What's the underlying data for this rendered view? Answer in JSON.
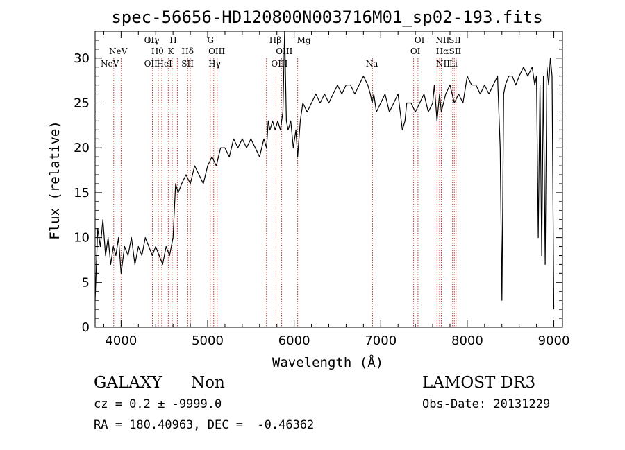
{
  "chart_data": {
    "type": "line",
    "title": "spec-56656-HD120800N003716M01_sp02-193.fits",
    "xlabel": "Wavelength (Å)",
    "ylabel": "Flux (relative)",
    "xlim": [
      3700,
      9100
    ],
    "ylim": [
      0,
      33
    ],
    "xticks": [
      4000,
      5000,
      6000,
      7000,
      8000,
      9000
    ],
    "xtick_labels": [
      "4000",
      "5000",
      "6000",
      "7000",
      "8000",
      "9000"
    ],
    "yticks": [
      0,
      5,
      10,
      15,
      20,
      25,
      30
    ],
    "ytick_labels": [
      "0",
      "5",
      "10",
      "15",
      "20",
      "25",
      "30"
    ],
    "series": [
      {
        "name": "spectrum",
        "x": [
          3700,
          3730,
          3760,
          3790,
          3820,
          3850,
          3880,
          3910,
          3940,
          3970,
          4000,
          4040,
          4080,
          4120,
          4160,
          4200,
          4240,
          4280,
          4320,
          4360,
          4400,
          4440,
          4480,
          4520,
          4560,
          4600,
          4630,
          4660,
          4700,
          4750,
          4800,
          4850,
          4900,
          4950,
          5000,
          5050,
          5100,
          5150,
          5200,
          5250,
          5300,
          5350,
          5400,
          5450,
          5500,
          5550,
          5600,
          5650,
          5680,
          5700,
          5720,
          5750,
          5780,
          5810,
          5840,
          5870,
          5890,
          5910,
          5930,
          5960,
          5990,
          6020,
          6040,
          6070,
          6100,
          6150,
          6200,
          6250,
          6300,
          6350,
          6400,
          6450,
          6500,
          6550,
          6600,
          6650,
          6700,
          6750,
          6800,
          6850,
          6880,
          6900,
          6920,
          6950,
          7000,
          7050,
          7100,
          7150,
          7200,
          7250,
          7280,
          7300,
          7350,
          7400,
          7450,
          7500,
          7550,
          7600,
          7620,
          7650,
          7680,
          7700,
          7750,
          7800,
          7850,
          7900,
          7950,
          8000,
          8050,
          8100,
          8150,
          8200,
          8250,
          8300,
          8350,
          8380,
          8400,
          8420,
          8440,
          8480,
          8520,
          8560,
          8600,
          8650,
          8700,
          8750,
          8780,
          8800,
          8820,
          8840,
          8860,
          8880,
          8900,
          8920,
          8940,
          8960,
          8980,
          9000
        ],
        "y": [
          3,
          11,
          9,
          12,
          8,
          10,
          7,
          9,
          8,
          10,
          6,
          9,
          8,
          10,
          7,
          9,
          8,
          10,
          9,
          8,
          9,
          8,
          7,
          9,
          8,
          10,
          16,
          15,
          16,
          17,
          16,
          18,
          17,
          16,
          18,
          19,
          18,
          20,
          20,
          19,
          21,
          20,
          21,
          20,
          21,
          20,
          19,
          21,
          20,
          23,
          22,
          23,
          22,
          23,
          22,
          24,
          33,
          23,
          22,
          23,
          20,
          22,
          19,
          23,
          25,
          24,
          25,
          26,
          25,
          26,
          25,
          26,
          27,
          26,
          27,
          27,
          26,
          27,
          28,
          27,
          26,
          25,
          26,
          24,
          25,
          26,
          24,
          25,
          26,
          22,
          23,
          25,
          25,
          24,
          25,
          26,
          24,
          25,
          27,
          23,
          26,
          24,
          26,
          27,
          25,
          26,
          25,
          28,
          27,
          27,
          26,
          27,
          26,
          27,
          28,
          20,
          3,
          26,
          27,
          28,
          28,
          27,
          28,
          29,
          28,
          29,
          27,
          28,
          10,
          27,
          8,
          28,
          7,
          29,
          27,
          30,
          28,
          2
        ]
      }
    ],
    "line_markers": [
      {
        "label": "NeV",
        "x": 3870,
        "row": 2
      },
      {
        "label": "NeV",
        "x": 3967,
        "row": 1
      },
      {
        "label": "OII",
        "x": 4344,
        "row": 0
      },
      {
        "label": "OII",
        "x": 4344,
        "row": 2
      },
      {
        "label": "Hγ",
        "x": 4372,
        "row": 0
      },
      {
        "label": "Hθ",
        "x": 4420,
        "row": 1
      },
      {
        "label": "HeI",
        "x": 4500,
        "row": 2
      },
      {
        "label": "H",
        "x": 4603,
        "row": 0
      },
      {
        "label": "K",
        "x": 4574,
        "row": 1
      },
      {
        "label": "Hδ",
        "x": 4768,
        "row": 1
      },
      {
        "label": "SII",
        "x": 4768,
        "row": 2
      },
      {
        "label": "G",
        "x": 5034,
        "row": 0
      },
      {
        "label": "OIII",
        "x": 5105,
        "row": 1
      },
      {
        "label": "Hγ",
        "x": 5080,
        "row": 2
      },
      {
        "label": "Hβ",
        "x": 5782,
        "row": 0
      },
      {
        "label": "OIII",
        "x": 5885,
        "row": 1
      },
      {
        "label": "OIII",
        "x": 5830,
        "row": 2
      },
      {
        "label": "Mg",
        "x": 6112,
        "row": 0
      },
      {
        "label": "Na",
        "x": 6898,
        "row": 2
      },
      {
        "label": "OI",
        "x": 7448,
        "row": 0
      },
      {
        "label": "OI",
        "x": 7400,
        "row": 1
      },
      {
        "label": "NII",
        "x": 7715,
        "row": 0
      },
      {
        "label": "SII",
        "x": 7856,
        "row": 0
      },
      {
        "label": "Hα",
        "x": 7712,
        "row": 1
      },
      {
        "label": "SII",
        "x": 7860,
        "row": 1
      },
      {
        "label": "NII",
        "x": 7720,
        "row": 2
      },
      {
        "label": "Li",
        "x": 7840,
        "row": 2
      }
    ],
    "marker_lines_x": [
      3915,
      4000,
      4362,
      4430,
      4470,
      4545,
      4590,
      4650,
      4770,
      4800,
      5030,
      5070,
      5110,
      5680,
      5790,
      5855,
      6040,
      6905,
      7380,
      7430,
      7650,
      7680,
      7700,
      7830,
      7850,
      7870
    ]
  },
  "info": {
    "class_label": "GALAXY",
    "subclass_label": "Non",
    "survey_label": "LAMOST DR3",
    "cz_text": "cz = 0.2 ± -9999.0",
    "obs_date_text": "Obs-Date: 20131229",
    "coords_text": "RA = 180.40963, DEC =  -0.46362"
  }
}
